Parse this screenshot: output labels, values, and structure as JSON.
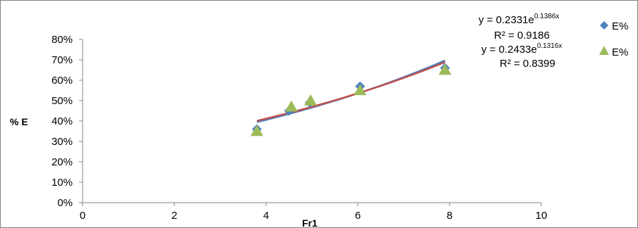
{
  "chart_data": {
    "type": "scatter",
    "title": "",
    "xlabel": "Fr1",
    "ylabel": "% E",
    "xlim": [
      0,
      10
    ],
    "ylim": [
      0,
      0.8
    ],
    "x_ticks": [
      0,
      2,
      4,
      6,
      8,
      10
    ],
    "x_tick_labels": [
      "0",
      "2",
      "4",
      "6",
      "8",
      "10"
    ],
    "y_ticks": [
      0,
      0.1,
      0.2,
      0.3,
      0.4,
      0.5,
      0.6,
      0.7,
      0.8
    ],
    "y_tick_labels": [
      "0%",
      "10%",
      "20%",
      "30%",
      "40%",
      "50%",
      "60%",
      "70%",
      "80%"
    ],
    "grid": false,
    "legend_position": "top-right",
    "series": [
      {
        "name": "E%",
        "marker": "diamond",
        "color": "#4F81BD",
        "x": [
          3.8,
          4.5,
          4.95,
          6.05,
          7.9
        ],
        "y": [
          0.36,
          0.45,
          0.49,
          0.57,
          0.66
        ],
        "trendline": {
          "type": "exponential",
          "a": 0.2331,
          "b": 0.1386,
          "color": "#4F81BD",
          "equation": "y = 0.2331e",
          "equation_exp": "0.1386x",
          "r2_label": "R² = 0.9186"
        }
      },
      {
        "name": "E%",
        "marker": "triangle",
        "color": "#9BBB59",
        "x": [
          3.8,
          4.55,
          4.97,
          6.05,
          7.9
        ],
        "y": [
          0.35,
          0.47,
          0.5,
          0.55,
          0.65
        ],
        "trendline": {
          "type": "exponential",
          "a": 0.2433,
          "b": 0.1316,
          "color": "#C0504D",
          "equation": "y = 0.2433e",
          "equation_exp": "0.1316x",
          "r2_label": "R² = 0.8399"
        }
      }
    ]
  }
}
